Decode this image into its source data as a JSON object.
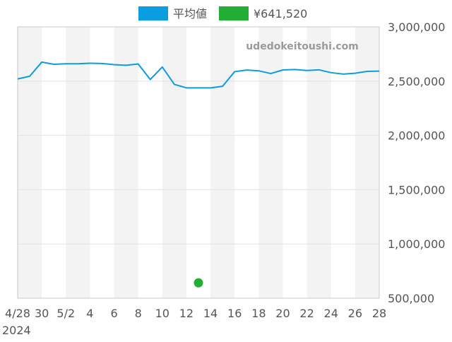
{
  "chart_data": {
    "type": "line",
    "watermark": "udedokeitoushi.com",
    "x": [
      "4/28",
      "4/29",
      "4/30",
      "5/1",
      "5/2",
      "5/3",
      "5/4",
      "5/5",
      "5/6",
      "5/7",
      "5/8",
      "5/9",
      "5/10",
      "5/11",
      "5/12",
      "5/13",
      "5/14",
      "5/15",
      "5/16",
      "5/17",
      "5/18",
      "5/19",
      "5/20",
      "5/21",
      "5/22",
      "5/23",
      "5/24",
      "5/25",
      "5/26",
      "5/27",
      "5/28"
    ],
    "x_tick_labels": [
      "4/28",
      "30",
      "5/2",
      "4",
      "6",
      "8",
      "10",
      "12",
      "14",
      "16",
      "18",
      "20",
      "22",
      "24",
      "26",
      "28"
    ],
    "x_year_label": "2024",
    "y_tick_labels": [
      "3,000,000",
      "2,500,000",
      "2,000,000",
      "1,500,000",
      "1,000,000",
      "500,000"
    ],
    "ylim": [
      500000,
      3000000
    ],
    "y_ticks": [
      3000000,
      2500000,
      2000000,
      1500000,
      1000000,
      500000
    ],
    "grid": true,
    "legend_position": "top-center",
    "series": [
      {
        "name": "平均値",
        "kind": "line",
        "color": "#0a9de0",
        "values": [
          2520000,
          2545000,
          2675000,
          2655000,
          2660000,
          2660000,
          2665000,
          2662000,
          2652000,
          2646000,
          2658000,
          2515000,
          2630000,
          2470000,
          2438000,
          2438000,
          2438000,
          2452000,
          2587000,
          2602000,
          2595000,
          2570000,
          2603000,
          2607000,
          2598000,
          2604000,
          2578000,
          2565000,
          2573000,
          2590000,
          2592000
        ]
      },
      {
        "name": "¥641,520",
        "kind": "point",
        "color": "#22ae35",
        "points": [
          {
            "x": "5/13",
            "y": 641520
          }
        ]
      }
    ]
  }
}
